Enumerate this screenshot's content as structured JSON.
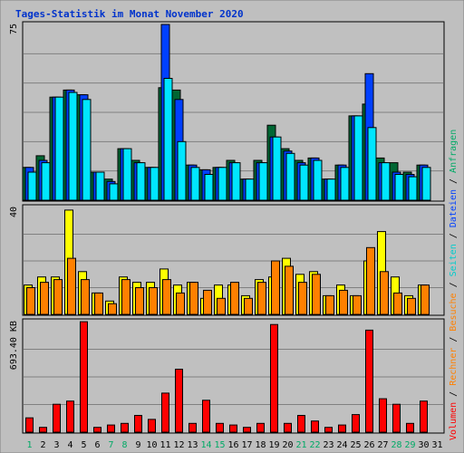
{
  "chart_data": {
    "title": "Tages-Statistik im Monat November 2020",
    "type": "bar",
    "categories": [
      "1",
      "2",
      "3",
      "4",
      "5",
      "6",
      "7",
      "8",
      "9",
      "10",
      "11",
      "12",
      "13",
      "14",
      "15",
      "16",
      "17",
      "18",
      "19",
      "20",
      "21",
      "22",
      "23",
      "24",
      "25",
      "26",
      "27",
      "28",
      "29",
      "30",
      "31"
    ],
    "weekend_days": [
      "1",
      "7",
      "8",
      "14",
      "15",
      "21",
      "22",
      "28",
      "29"
    ],
    "panels": [
      {
        "name": "top",
        "ymax_label": "75",
        "ylim": [
          0,
          75
        ],
        "series": [
          {
            "name": "Anfragen",
            "color": "#006633",
            "values": [
              14,
              19,
              44,
              47,
              45,
              12,
              9,
              22,
              17,
              14,
              48,
              47,
              15,
              13,
              14,
              17,
              9,
              17,
              32,
              22,
              17,
              18,
              9,
              15,
              36,
              41,
              18,
              16,
              12,
              15,
              0
            ]
          },
          {
            "name": "Dateien",
            "color": "#0040ff",
            "values": [
              14,
              17,
              44,
              47,
              45,
              12,
              8,
              22,
              16,
              14,
              75,
              43,
              15,
              13,
              14,
              16,
              9,
              16,
              27,
              21,
              16,
              18,
              9,
              15,
              36,
              54,
              16,
              12,
              11,
              15,
              0
            ]
          },
          {
            "name": "Seiten",
            "color": "#00e6ff",
            "values": [
              12,
              16,
              44,
              46,
              43,
              12,
              7,
              22,
              16,
              14,
              52,
              25,
              14,
              11,
              14,
              16,
              9,
              16,
              27,
              20,
              15,
              17,
              9,
              14,
              36,
              31,
              16,
              11,
              10,
              14,
              0
            ]
          }
        ]
      },
      {
        "name": "middle",
        "ymax_label": "40",
        "ylim": [
          0,
          40
        ],
        "series": [
          {
            "name": "Besuche",
            "color": "#ffff00",
            "values": [
              11,
              14,
              14,
              39,
              16,
              8,
              5,
              14,
              12,
              12,
              17,
              11,
              12,
              6,
              11,
              11,
              7,
              13,
              14,
              21,
              15,
              16,
              7,
              11,
              7,
              20,
              31,
              14,
              7,
              11,
              0
            ]
          },
          {
            "name": "Rechner",
            "color": "#ff8000",
            "values": [
              10,
              12,
              13,
              21,
              13,
              8,
              4,
              13,
              10,
              10,
              13,
              8,
              12,
              9,
              6,
              12,
              6,
              12,
              20,
              18,
              12,
              15,
              7,
              9,
              7,
              25,
              16,
              8,
              6,
              11,
              0
            ]
          }
        ]
      },
      {
        "name": "bottom",
        "ymax_label": "693.40 KB",
        "ylim": [
          0,
          693.4
        ],
        "series": [
          {
            "name": "Volumen",
            "color": "#ff0000",
            "values": [
              90,
              30,
              175,
              195,
              693,
              30,
              45,
              55,
              105,
              80,
              245,
              395,
              55,
              200,
              55,
              45,
              30,
              55,
              675,
              55,
              105,
              70,
              30,
              45,
              110,
              640,
              210,
              175,
              55,
              195,
              0
            ]
          }
        ]
      }
    ],
    "legend_order": [
      "Volumen",
      "Rechner",
      "Besuche",
      "Seiten",
      "Dateien",
      "Anfragen"
    ],
    "legend_colors": {
      "Volumen": "#ff0000",
      "Rechner": "#ff8000",
      "Besuche": "#ff8000",
      "Seiten": "#00cccc",
      "Dateien": "#0040ff",
      "Anfragen": "#00aa66"
    },
    "colors": {
      "background": "#c0c0c0",
      "frame": "#bfbfbf",
      "title": "#0033cc",
      "weekday_label": "#000000",
      "weekend_label": "#00aa66",
      "grid": "#808080"
    }
  }
}
